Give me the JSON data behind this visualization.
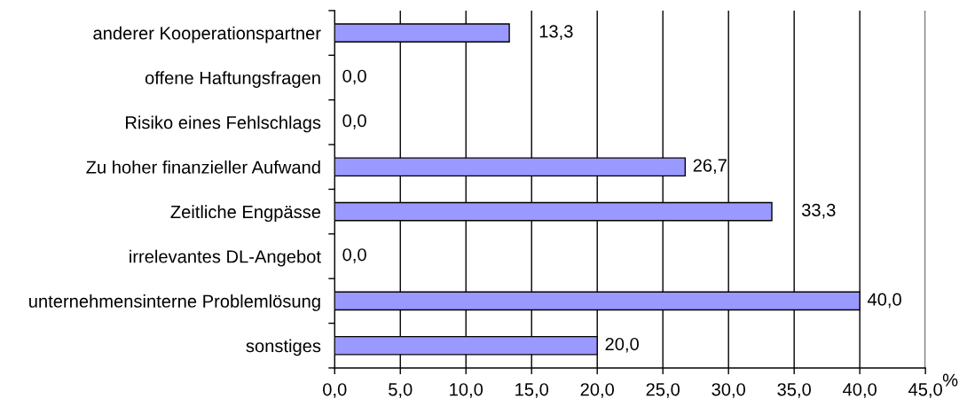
{
  "chart_data": {
    "type": "bar",
    "orientation": "horizontal",
    "xlabel": "%",
    "categories": [
      "anderer Kooperationspartner",
      "offene Haftungsfragen",
      "Risiko eines Fehlschlags",
      "Zu hoher finanzieller Aufwand",
      "Zeitliche Engpässe",
      "irrelevantes DL-Angebot",
      "unternehmensinterne Problemlösung",
      "sonstiges"
    ],
    "values": [
      13.3,
      0.0,
      0.0,
      26.7,
      33.3,
      0.0,
      40.0,
      20.0
    ],
    "value_labels": [
      "13,3",
      "0,0",
      "0,0",
      "26,7",
      "33,3",
      "0,0",
      "40,0",
      "20,0"
    ],
    "color": "#9999ff",
    "xlim": [
      0,
      45
    ],
    "xticks": [
      {
        "value": 0,
        "label": "0,0"
      },
      {
        "value": 5,
        "label": "5,0"
      },
      {
        "value": 10,
        "label": "10,0"
      },
      {
        "value": 15,
        "label": "15,0"
      },
      {
        "value": 20,
        "label": "20,0"
      },
      {
        "value": 25,
        "label": "25,0"
      },
      {
        "value": 30,
        "label": "30,0"
      },
      {
        "value": 35,
        "label": "35,0"
      },
      {
        "value": 40,
        "label": "40,0"
      },
      {
        "value": 45,
        "label": "45,0"
      }
    ],
    "grid": "x"
  }
}
